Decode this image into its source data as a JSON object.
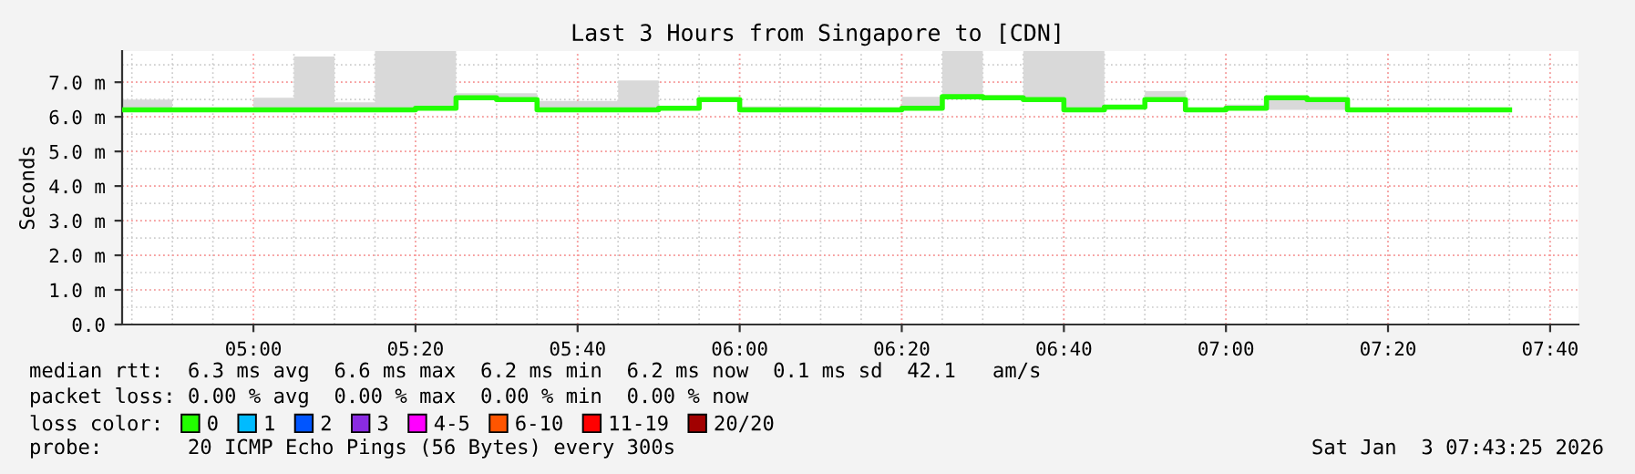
{
  "chart_data": {
    "type": "step",
    "title": "Last 3 Hours from Singapore to [CDN]",
    "ylabel": "Seconds",
    "legend_title": "loss color:",
    "legend": "bottom",
    "grid": true,
    "x": [
      4.73,
      4.8333,
      5.0,
      5.0833,
      5.1667,
      5.25,
      5.3333,
      5.4167,
      5.5,
      5.5833,
      5.75,
      5.8333,
      5.9167,
      6.0,
      6.1667,
      6.25,
      6.3333,
      6.4167,
      6.5,
      6.5833,
      6.6667,
      6.75,
      6.8333,
      6.9167,
      7.0,
      7.0833,
      7.1667,
      7.25,
      7.5833
    ],
    "xlim": [
      4.73,
      7.725
    ],
    "xticks": [
      {
        "value": 5.0,
        "label": "05:00"
      },
      {
        "value": 5.3333,
        "label": "05:20"
      },
      {
        "value": 5.6667,
        "label": "05:40"
      },
      {
        "value": 6.0,
        "label": "06:00"
      },
      {
        "value": 6.3333,
        "label": "06:20"
      },
      {
        "value": 6.6667,
        "label": "06:40"
      },
      {
        "value": 7.0,
        "label": "07:00"
      },
      {
        "value": 7.3333,
        "label": "07:20"
      },
      {
        "value": 7.6667,
        "label": "07:40"
      }
    ],
    "ylim": [
      0,
      7.9
    ],
    "yticks": [
      {
        "value": 0,
        "label": "0.0"
      },
      {
        "value": 1,
        "label": "1.0 m"
      },
      {
        "value": 2,
        "label": "2.0 m"
      },
      {
        "value": 3,
        "label": "3.0 m"
      },
      {
        "value": 4,
        "label": "4.0 m"
      },
      {
        "value": 5,
        "label": "5.0 m"
      },
      {
        "value": 6,
        "label": "6.0 m"
      },
      {
        "value": 7,
        "label": "7.0 m"
      }
    ],
    "series": [
      {
        "name": "0",
        "color": "#22ff00",
        "values": [
          6.2,
          6.2,
          6.2,
          6.2,
          6.2,
          6.2,
          6.25,
          6.55,
          6.5,
          6.2,
          6.2,
          6.25,
          6.5,
          6.2,
          6.2,
          6.2,
          6.25,
          6.58,
          6.55,
          6.5,
          6.2,
          6.28,
          6.5,
          6.2,
          6.25,
          6.55,
          6.5,
          6.2,
          6.2
        ],
        "lower": [
          6.2,
          6.2,
          6.2,
          6.2,
          6.2,
          6.2,
          6.25,
          6.55,
          6.5,
          6.2,
          6.2,
          6.25,
          6.5,
          6.2,
          6.2,
          6.2,
          6.25,
          6.58,
          6.55,
          6.5,
          6.2,
          6.28,
          6.5,
          6.2,
          6.2,
          6.2,
          6.2,
          6.2,
          6.2
        ],
        "upper": [
          6.5,
          6.2,
          6.55,
          7.74,
          6.42,
          7.9,
          7.9,
          6.68,
          6.68,
          6.46,
          7.05,
          6.25,
          6.5,
          6.3,
          6.22,
          6.27,
          6.58,
          7.9,
          6.63,
          7.9,
          7.9,
          6.3,
          6.74,
          6.25,
          6.35,
          6.6,
          6.55,
          6.23,
          6.23
        ]
      },
      {
        "name": "1",
        "color": "#00bbff",
        "values": [
          null,
          null,
          null,
          null,
          null,
          null,
          null,
          null,
          null,
          null,
          null,
          null,
          null,
          null,
          null,
          null,
          null,
          null,
          null,
          null,
          null,
          null,
          null,
          null,
          null,
          null,
          null,
          null,
          null
        ]
      },
      {
        "name": "2",
        "color": "#0055ff",
        "values": [
          null,
          null,
          null,
          null,
          null,
          null,
          null,
          null,
          null,
          null,
          null,
          null,
          null,
          null,
          null,
          null,
          null,
          null,
          null,
          null,
          null,
          null,
          null,
          null,
          null,
          null,
          null,
          null,
          null
        ]
      },
      {
        "name": "3",
        "color": "#8a2be2",
        "values": [
          null,
          null,
          null,
          null,
          null,
          null,
          null,
          null,
          null,
          null,
          null,
          null,
          null,
          null,
          null,
          null,
          null,
          null,
          null,
          null,
          null,
          null,
          null,
          null,
          null,
          null,
          null,
          null,
          null
        ]
      },
      {
        "name": "4-5",
        "color": "#ff00ff",
        "values": [
          null,
          null,
          null,
          null,
          null,
          null,
          null,
          null,
          null,
          null,
          null,
          null,
          null,
          null,
          null,
          null,
          null,
          null,
          null,
          null,
          null,
          null,
          null,
          null,
          null,
          null,
          null,
          null,
          null
        ]
      },
      {
        "name": "6-10",
        "color": "#ff5500",
        "values": [
          null,
          null,
          null,
          null,
          null,
          null,
          null,
          null,
          null,
          null,
          null,
          null,
          null,
          null,
          null,
          null,
          null,
          null,
          null,
          null,
          null,
          null,
          null,
          null,
          null,
          null,
          null,
          null,
          null
        ]
      },
      {
        "name": "11-19",
        "color": "#ff0000",
        "values": [
          null,
          null,
          null,
          null,
          null,
          null,
          null,
          null,
          null,
          null,
          null,
          null,
          null,
          null,
          null,
          null,
          null,
          null,
          null,
          null,
          null,
          null,
          null,
          null,
          null,
          null,
          null,
          null,
          null
        ]
      },
      {
        "name": "20/20",
        "color": "#a10000",
        "values": [
          null,
          null,
          null,
          null,
          null,
          null,
          null,
          null,
          null,
          null,
          null,
          null,
          null,
          null,
          null,
          null,
          null,
          null,
          null,
          null,
          null,
          null,
          null,
          null,
          null,
          null,
          null,
          null,
          null
        ]
      }
    ],
    "annotations": [
      "median rtt:  6.3 ms avg  6.6 ms max  6.2 ms min  6.2 ms now  0.1 ms sd  42.1   am/s",
      "packet loss: 0.00 % avg  0.00 % max  0.00 % min  0.00 % now",
      "probe:       20 ICMP Echo Pings (56 Bytes) every 300s",
      "Sat Jan  3 07:43:25 2026"
    ]
  }
}
